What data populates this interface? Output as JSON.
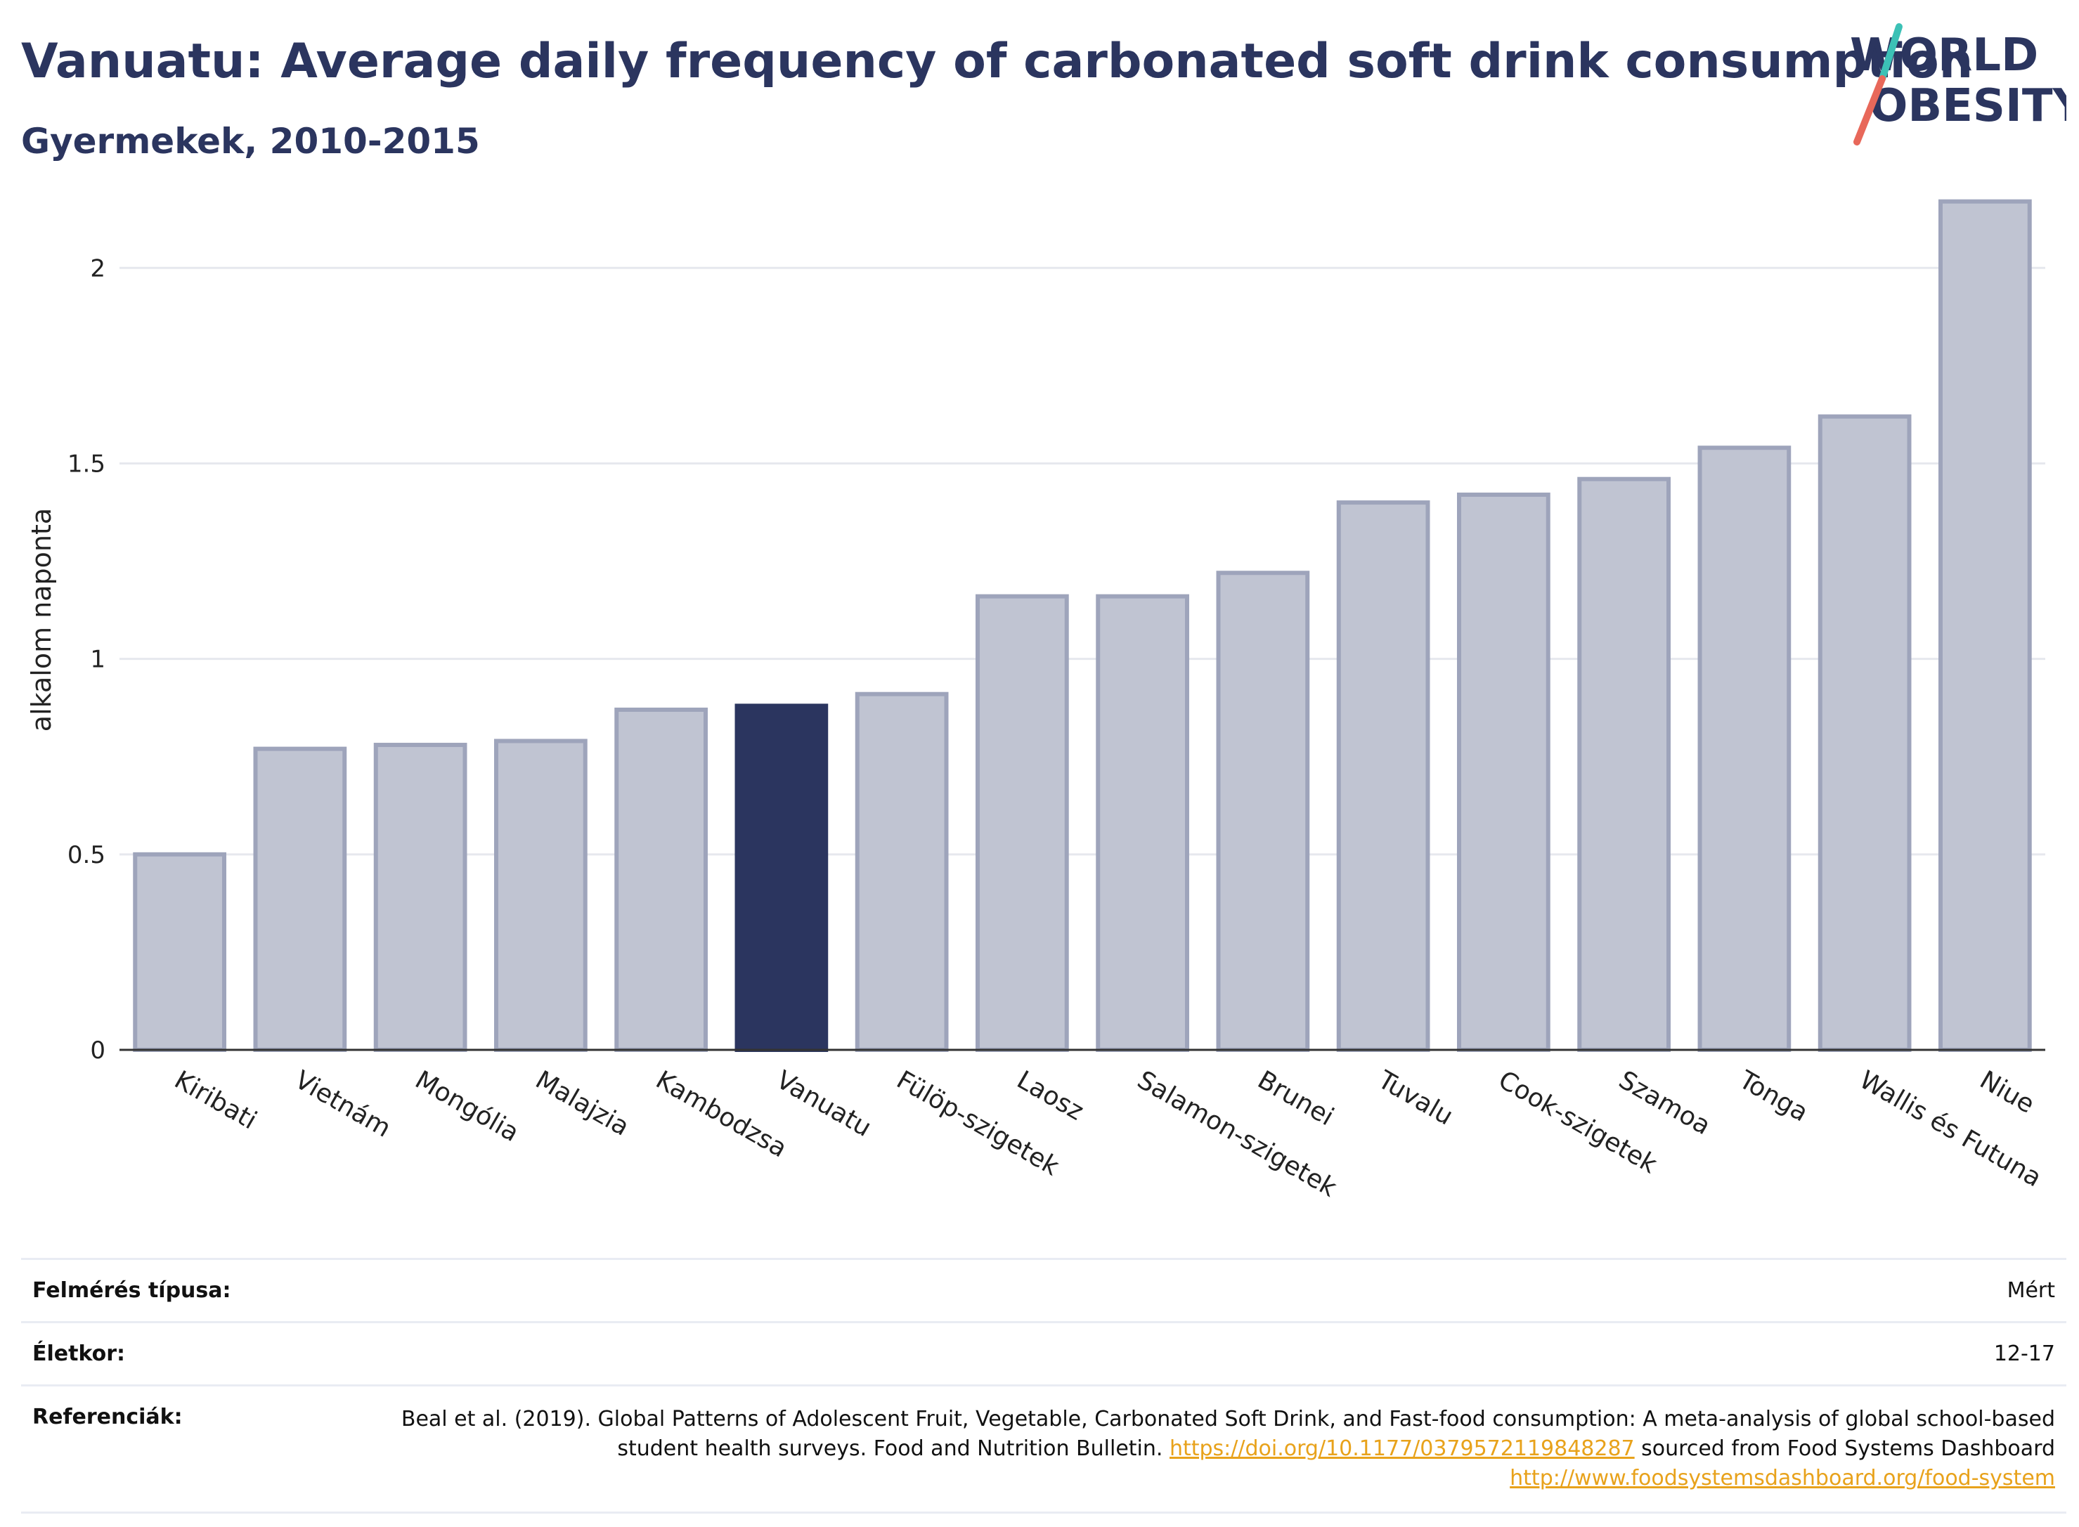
{
  "header": {
    "title": "Vanuatu: Average daily frequency of carbonated soft drink consumption",
    "subtitle": "Gyermekek, 2010-2015"
  },
  "logo": {
    "line1": "WORLD",
    "line2": "OBESITY",
    "name": "world-obesity-logo"
  },
  "chart_data": {
    "type": "bar",
    "categories": [
      "Kiribati",
      "Vietnám",
      "Mongólia",
      "Malajzia",
      "Kambodzsa",
      "Vanuatu",
      "Fülöp-szigetek",
      "Laosz",
      "Salamon-szigetek",
      "Brunei",
      "Tuvalu",
      "Cook-szigetek",
      "Szamoa",
      "Tonga",
      "Wallis és Futuna",
      "Niue"
    ],
    "values": [
      0.5,
      0.77,
      0.78,
      0.79,
      0.87,
      0.88,
      0.91,
      1.16,
      1.16,
      1.22,
      1.4,
      1.42,
      1.46,
      1.54,
      1.62,
      2.17
    ],
    "highlight": "Vanuatu",
    "ylabel": "alkalom naponta",
    "yticks": [
      0,
      0.5,
      1,
      1.5,
      2
    ],
    "ytick_labels": [
      "0",
      "0.5",
      "1",
      "1.5",
      "2"
    ],
    "ylim": [
      0,
      2.2
    ],
    "grid": true,
    "colors": {
      "bar": "#c0c4d2",
      "bar_border": "#9ea4bb",
      "highlight": "#2b355f"
    }
  },
  "info": {
    "rows": [
      {
        "label": "Felmérés típusa:",
        "value": "Mért"
      },
      {
        "label": "Életkor:",
        "value": "12-17"
      }
    ],
    "reference": {
      "label": "Referenciák:",
      "text1": "Beal et al. (2019). Global Patterns of Adolescent Fruit, Vegetable, Carbonated Soft Drink, and Fast-food consumption: A meta-analysis of global school-based student health surveys. Food and Nutrition Bulletin. ",
      "link1": "https://doi.org/10.1177/0379572119848287",
      "text2": " sourced from Food Systems Dashboard ",
      "link2": "http://www.foodsystemsdashboard.org/food-system"
    }
  }
}
